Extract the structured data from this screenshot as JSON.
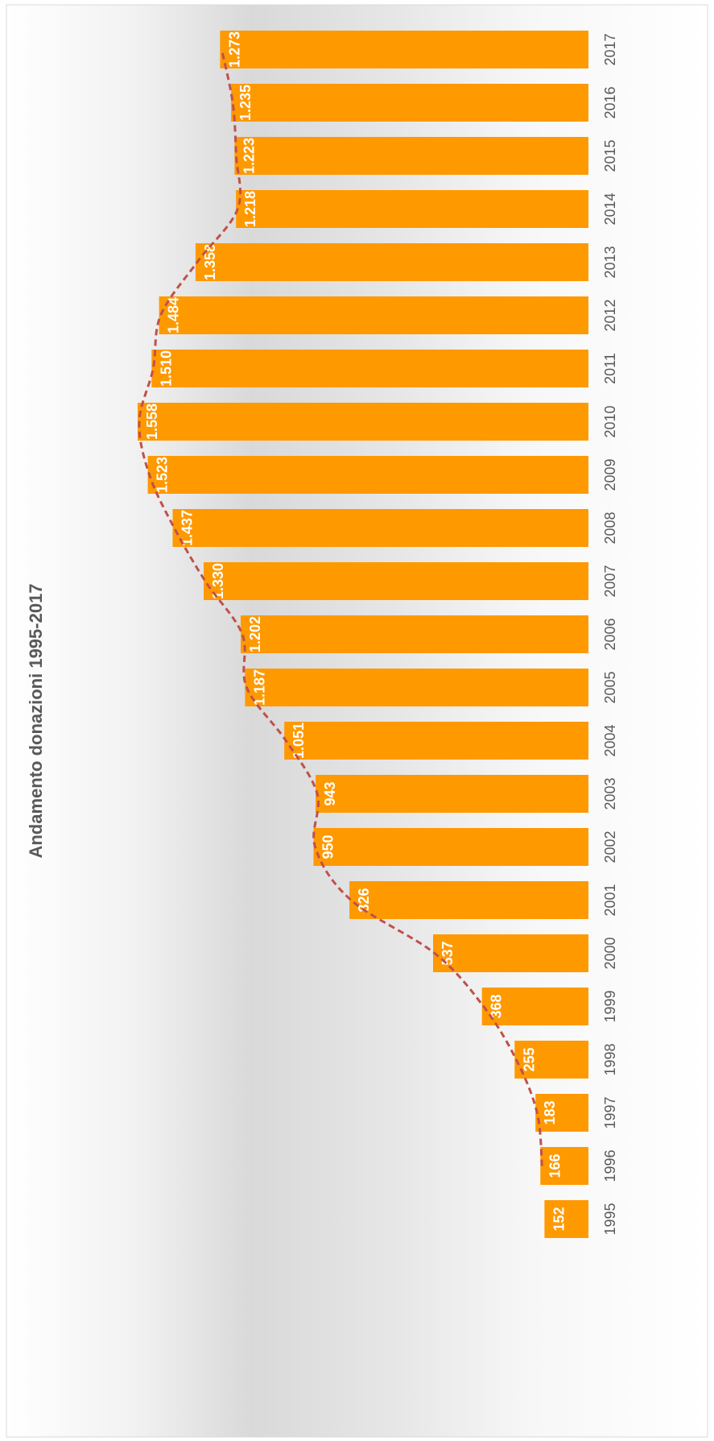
{
  "chart_data": {
    "type": "bar",
    "title": "Andamento donazioni 1995-2017",
    "categories": [
      "1995",
      "1996",
      "1997",
      "1998",
      "1999",
      "2000",
      "2001",
      "2002",
      "2003",
      "2004",
      "2005",
      "2006",
      "2007",
      "2008",
      "2009",
      "2010",
      "2011",
      "2012",
      "2013",
      "2014",
      "2015",
      "2016",
      "2017"
    ],
    "values": [
      152,
      166,
      183,
      255,
      368,
      537,
      826,
      950,
      943,
      1051,
      1187,
      1202,
      1330,
      1437,
      1523,
      1558,
      1510,
      1484,
      1358,
      1218,
      1223,
      1235,
      1273
    ],
    "value_labels": [
      "152",
      "166",
      "183",
      "255",
      "368",
      "537",
      "826",
      "950",
      "943",
      "1.051",
      "1.187",
      "1.202",
      "1.330",
      "1.437",
      "1.523",
      "1.558",
      "1.510",
      "1.484",
      "1.358",
      "1.218",
      "1.223",
      "1.235",
      "1.273"
    ],
    "orientation": "rotated-90-clockwise",
    "trendline": "dashed smoothed line",
    "grid": false,
    "legend": "none",
    "colors": {
      "bar": "#FF9900",
      "bar_label": "#FFFFFF",
      "trend": "#C0504D",
      "axis_text": "#595959",
      "title": "#595959",
      "background_light": "#FFFFFF",
      "background_mid": "#D9D9D9"
    }
  }
}
